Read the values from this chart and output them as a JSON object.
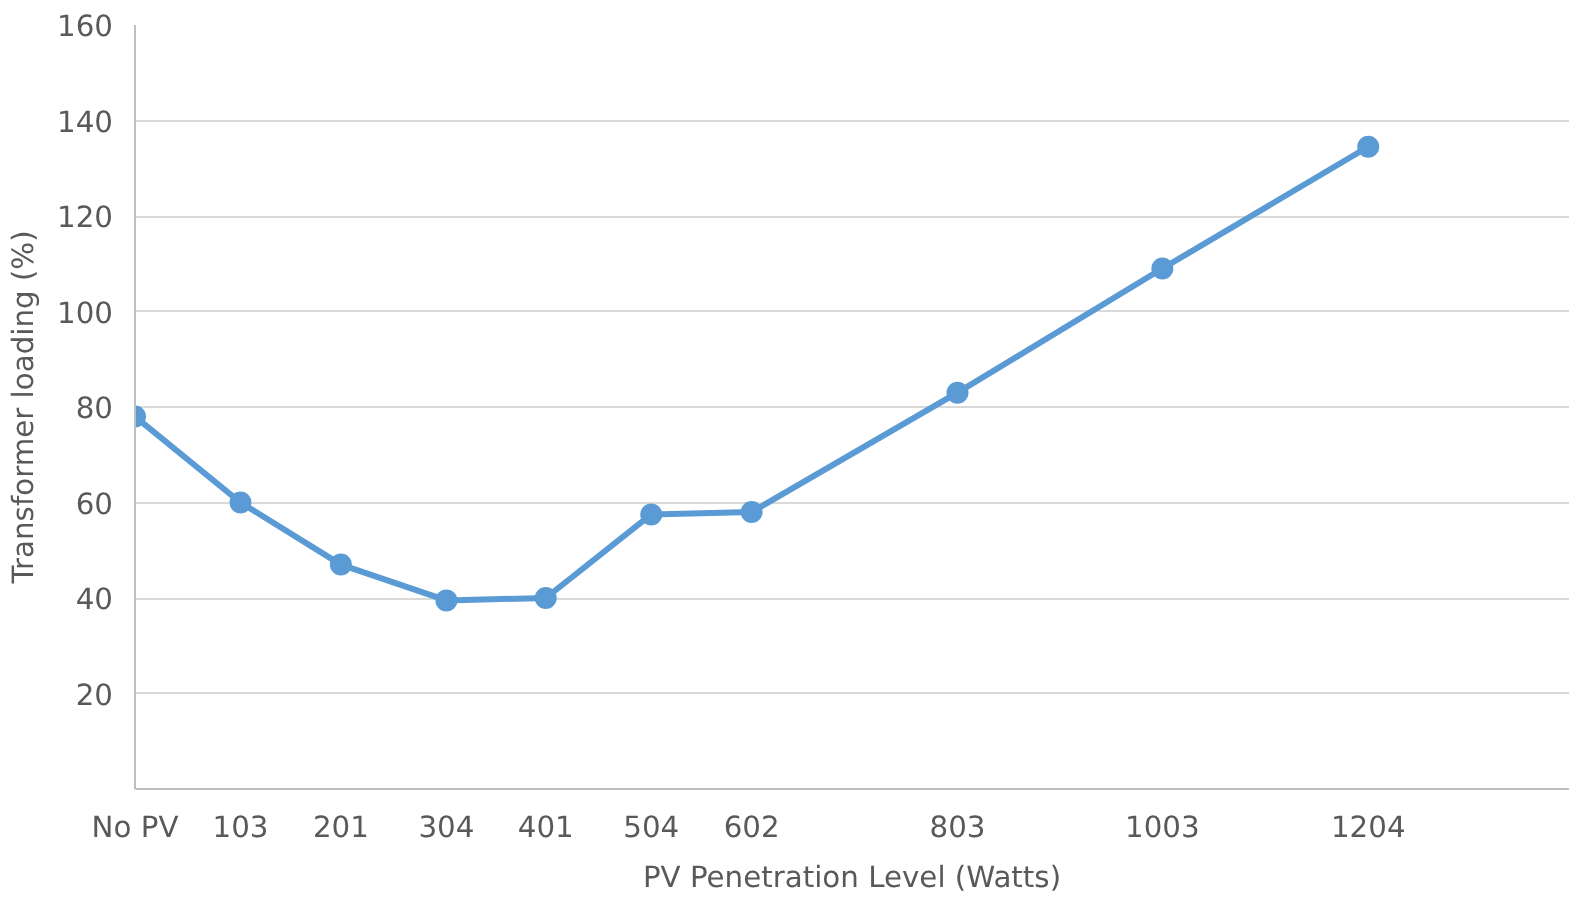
{
  "chart_data": {
    "type": "line",
    "xlabel": "PV Penetration Level (Watts)",
    "ylabel": "Transformer loading (%)",
    "x": [
      0,
      103,
      201,
      304,
      401,
      504,
      602,
      803,
      1003,
      1204
    ],
    "series": [
      {
        "color": "#5b9bd5",
        "values": [
          78,
          60,
          47,
          39.5,
          40,
          57.5,
          58,
          83,
          109,
          134.5
        ]
      }
    ],
    "xlim": [
      0,
      1400
    ],
    "xticks": [
      {
        "value": 0,
        "label": "No PV"
      },
      103,
      201,
      304,
      401,
      504,
      602,
      803,
      1003,
      1204
    ],
    "ylim": [
      0,
      160
    ],
    "yticks": [
      20,
      40,
      60,
      80,
      100,
      120,
      140,
      160
    ],
    "grid": "y",
    "marker": "circle",
    "line_style": "solid"
  }
}
